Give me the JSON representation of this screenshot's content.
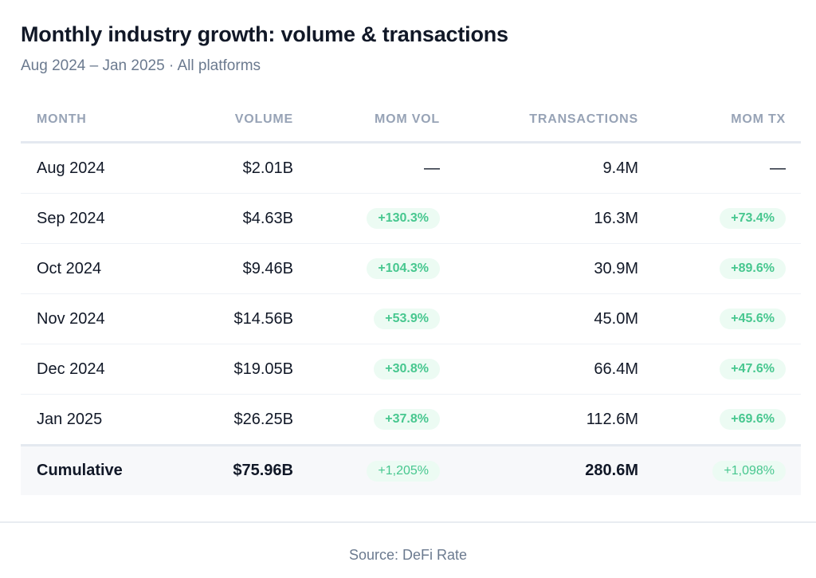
{
  "header": {
    "title": "Monthly industry growth: volume & transactions",
    "subtitle": "Aug 2024 – Jan 2025 · All platforms"
  },
  "table": {
    "columns": [
      "MONTH",
      "VOLUME",
      "MOM VOL",
      "TRANSACTIONS",
      "MOM TX"
    ],
    "rows": [
      {
        "month": "Aug 2024",
        "volume": "$2.01B",
        "mom_vol": "—",
        "transactions": "9.4M",
        "mom_tx": "—"
      },
      {
        "month": "Sep 2024",
        "volume": "$4.63B",
        "mom_vol": "+130.3%",
        "transactions": "16.3M",
        "mom_tx": "+73.4%"
      },
      {
        "month": "Oct 2024",
        "volume": "$9.46B",
        "mom_vol": "+104.3%",
        "transactions": "30.9M",
        "mom_tx": "+89.6%"
      },
      {
        "month": "Nov 2024",
        "volume": "$14.56B",
        "mom_vol": "+53.9%",
        "transactions": "45.0M",
        "mom_tx": "+45.6%"
      },
      {
        "month": "Dec 2024",
        "volume": "$19.05B",
        "mom_vol": "+30.8%",
        "transactions": "66.4M",
        "mom_tx": "+47.6%"
      },
      {
        "month": "Jan 2025",
        "volume": "$26.25B",
        "mom_vol": "+37.8%",
        "transactions": "112.6M",
        "mom_tx": "+69.6%"
      }
    ],
    "total": {
      "month": "Cumulative",
      "volume": "$75.96B",
      "mom_vol": "+1,205%",
      "transactions": "280.6M",
      "mom_tx": "+1,098%"
    }
  },
  "colors": {
    "positive_text": "#47c78f",
    "positive_bg": "#ecfbf3",
    "header_text": "#97a3b6"
  },
  "footer": {
    "source": "Source: DeFi Rate"
  }
}
